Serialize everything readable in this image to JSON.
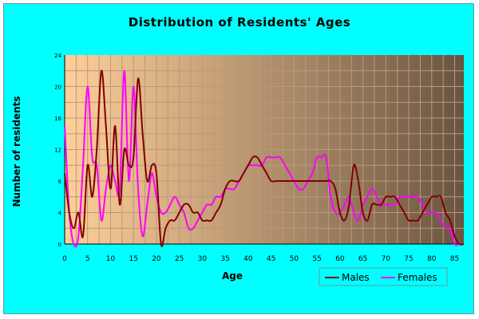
{
  "chart_data": {
    "type": "line",
    "title": "Distribution of Residents' Ages",
    "xlabel": "Age",
    "ylabel": "Number of residents",
    "xlim": [
      0,
      87
    ],
    "ylim": [
      0,
      24
    ],
    "x_ticks": [
      "0",
      "5",
      "10",
      "15",
      "20",
      "25",
      "30",
      "35",
      "40",
      "45",
      "50",
      "55",
      "60",
      "65",
      "70",
      "75",
      "80",
      "85"
    ],
    "y_ticks": [
      "0",
      "4",
      "8",
      "12",
      "16",
      "20",
      "24"
    ],
    "grid": true,
    "legend_position": "bottom-right",
    "colors": {
      "background": "#00ffff",
      "plot_left": "#ffcf99",
      "plot_right": "#6a5440",
      "grid": "#b49a82",
      "males": "#800000",
      "females": "#ff00ff"
    },
    "series": [
      {
        "name": "Males",
        "x": [
          0,
          1,
          2,
          3,
          4,
          5,
          6,
          7,
          8,
          9,
          10,
          11,
          12,
          13,
          14,
          15,
          16,
          17,
          18,
          19,
          20,
          21,
          22,
          23,
          24,
          25,
          26,
          27,
          28,
          29,
          30,
          31,
          32,
          33,
          34,
          35,
          36,
          37,
          38,
          39,
          40,
          41,
          42,
          43,
          44,
          45,
          46,
          47,
          48,
          49,
          50,
          51,
          52,
          53,
          54,
          55,
          56,
          57,
          58,
          59,
          60,
          61,
          62,
          63,
          64,
          65,
          66,
          67,
          68,
          69,
          70,
          71,
          72,
          73,
          74,
          75,
          76,
          77,
          78,
          79,
          80,
          81,
          82,
          83,
          84,
          85,
          86,
          87
        ],
        "values": [
          9,
          4,
          2,
          4,
          1,
          10,
          6,
          12,
          22,
          15,
          7,
          15,
          5,
          12,
          10,
          11,
          21,
          14,
          8,
          10,
          9,
          0,
          2,
          3,
          3,
          4,
          5,
          5,
          4,
          4,
          3,
          3,
          3,
          4,
          5,
          7,
          8,
          8,
          8,
          9,
          10,
          11,
          11,
          10,
          9,
          8,
          8,
          8,
          8,
          8,
          8,
          8,
          8,
          8,
          8,
          8,
          8,
          8,
          8,
          7,
          4,
          3,
          5,
          10,
          8,
          4,
          3,
          5,
          5,
          5,
          6,
          6,
          6,
          5,
          4,
          3,
          3,
          3,
          4,
          5,
          6,
          6,
          6,
          4,
          3,
          1,
          0,
          0
        ]
      },
      {
        "name": "Females",
        "x": [
          0,
          1,
          2,
          3,
          4,
          5,
          6,
          7,
          8,
          9,
          10,
          11,
          12,
          13,
          14,
          15,
          16,
          17,
          18,
          19,
          20,
          21,
          22,
          23,
          24,
          25,
          26,
          27,
          28,
          29,
          30,
          31,
          32,
          33,
          34,
          35,
          36,
          37,
          38,
          39,
          40,
          41,
          42,
          43,
          44,
          45,
          46,
          47,
          48,
          49,
          50,
          51,
          52,
          53,
          54,
          55,
          56,
          57,
          58,
          59,
          60,
          61,
          62,
          63,
          64,
          65,
          66,
          67,
          68,
          69,
          70,
          71,
          72,
          73,
          74,
          75,
          76,
          77,
          78,
          79,
          80,
          81,
          82,
          83,
          84,
          85,
          86,
          87
        ],
        "values": [
          15,
          4,
          0,
          1,
          10,
          20,
          11,
          10,
          3,
          7,
          10,
          8,
          7,
          22,
          8,
          20,
          7,
          1,
          5,
          9,
          6,
          4,
          4,
          5,
          6,
          5,
          4,
          2,
          2,
          3,
          4,
          5,
          5,
          6,
          6,
          7,
          7,
          7,
          8,
          9,
          10,
          10,
          10,
          10,
          11,
          11,
          11,
          11,
          10,
          9,
          8,
          7,
          7,
          8,
          9,
          11,
          11,
          11,
          6,
          4,
          4,
          5,
          6,
          4,
          3,
          5,
          6,
          7,
          6,
          5,
          5,
          5,
          5,
          6,
          6,
          6,
          6,
          6,
          5,
          4,
          4,
          4,
          3,
          2,
          2,
          0,
          0,
          0
        ]
      }
    ]
  }
}
